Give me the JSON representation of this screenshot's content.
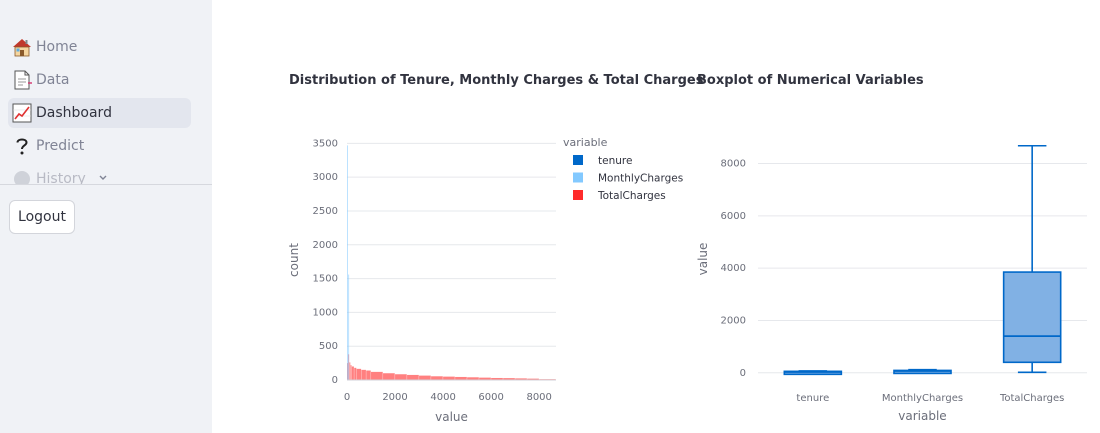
{
  "sidebar": {
    "items": [
      {
        "label": "Home",
        "icon": "house-icon"
      },
      {
        "label": "Data",
        "icon": "document-icon"
      },
      {
        "label": "Dashboard",
        "icon": "chart-up-icon",
        "active": true
      },
      {
        "label": "Predict",
        "icon": "question-icon"
      },
      {
        "label": "History",
        "icon": "hourglass-icon"
      }
    ],
    "logout_label": "Logout"
  },
  "charts": {
    "hist_title": "Distribution of Tenure, Monthly Charges & Total Charges",
    "box_title": "Boxplot of Numerical Variables"
  },
  "colors": {
    "tenure": "#0068c9",
    "monthly": "#83c9ff",
    "total": "#ff2b2b"
  },
  "chart_data": [
    {
      "type": "bar",
      "subtype": "histogram",
      "title": "Distribution of Tenure, Monthly Charges & Total Charges",
      "xlabel": "value",
      "ylabel": "count",
      "xlim": [
        0,
        8700
      ],
      "ylim": [
        0,
        3550
      ],
      "x_ticks": [
        0,
        2000,
        4000,
        6000,
        8000
      ],
      "y_ticks": [
        0,
        500,
        1000,
        1500,
        2000,
        2500,
        3000,
        3500
      ],
      "legend_title": "variable",
      "legend_position": "top-right",
      "series": [
        {
          "name": "tenure",
          "bins": [
            [
              0,
              50,
              0
            ]
          ]
        },
        {
          "name": "MonthlyCharges",
          "bins": [
            [
              0,
              50,
              3470
            ],
            [
              50,
              100,
              1560
            ],
            [
              100,
              150,
              0
            ]
          ]
        },
        {
          "name": "TotalCharges",
          "bins": [
            [
              0,
              50,
              250
            ],
            [
              50,
              100,
              380
            ],
            [
              100,
              150,
              260
            ],
            [
              150,
              200,
              220
            ],
            [
              200,
              300,
              200
            ],
            [
              300,
              400,
              180
            ],
            [
              400,
              600,
              165
            ],
            [
              600,
              800,
              150
            ],
            [
              800,
              1000,
              140
            ],
            [
              1000,
              1500,
              120
            ],
            [
              1500,
              2000,
              100
            ],
            [
              2000,
              2500,
              85
            ],
            [
              2500,
              3000,
              75
            ],
            [
              3000,
              3500,
              65
            ],
            [
              3500,
              4000,
              55
            ],
            [
              4000,
              4500,
              50
            ],
            [
              4500,
              5000,
              45
            ],
            [
              5000,
              5500,
              40
            ],
            [
              5500,
              6000,
              35
            ],
            [
              6000,
              6500,
              30
            ],
            [
              6500,
              7000,
              28
            ],
            [
              7000,
              7500,
              24
            ],
            [
              7500,
              8000,
              20
            ],
            [
              8000,
              8700,
              12
            ]
          ]
        }
      ],
      "grid": true
    },
    {
      "type": "box",
      "title": "Boxplot of Numerical Variables",
      "xlabel": "variable",
      "ylabel": "value",
      "ylim": [
        -200,
        8900
      ],
      "y_ticks": [
        0,
        2000,
        4000,
        6000,
        8000
      ],
      "categories": [
        "tenure",
        "MonthlyCharges",
        "TotalCharges"
      ],
      "boxes": [
        {
          "name": "tenure",
          "min": 0,
          "q1": 9,
          "median": 29,
          "q3": 55,
          "max": 72
        },
        {
          "name": "MonthlyCharges",
          "min": 18,
          "q1": 35,
          "median": 70,
          "q3": 90,
          "max": 119
        },
        {
          "name": "TotalCharges",
          "min": 19,
          "q1": 400,
          "median": 1400,
          "q3": 3850,
          "max": 8680
        }
      ],
      "grid": true
    }
  ]
}
